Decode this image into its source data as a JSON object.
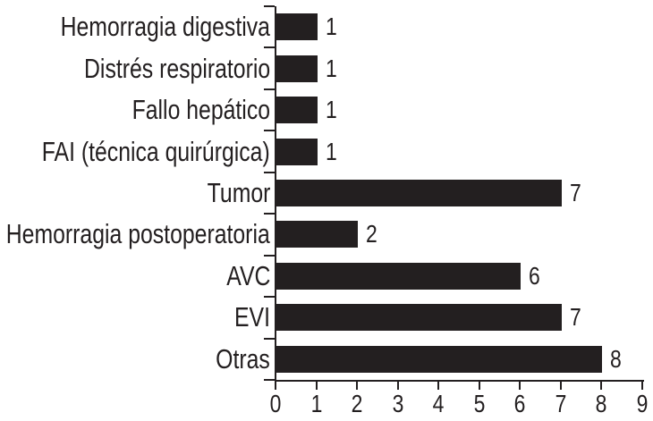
{
  "figure": {
    "background_color": "#ffffff",
    "bar_color": "#231f20",
    "axis_color": "#231f20",
    "text_color": "#231f20"
  },
  "chart_data": {
    "type": "bar",
    "orientation": "horizontal",
    "title": "",
    "xlabel": "",
    "ylabel": "",
    "categories": [
      "Hemorragia digestiva",
      "Distrés respiratorio",
      "Fallo hepático",
      "FAI (técnica quirúrgica)",
      "Tumor",
      "Hemorragia postoperatoria",
      "AVC",
      "EVI",
      "Otras"
    ],
    "values": [
      1,
      1,
      1,
      1,
      7,
      2,
      6,
      7,
      8
    ],
    "data_labels": [
      "1",
      "1",
      "1",
      "1",
      "7",
      "2",
      "6",
      "7",
      "8"
    ],
    "xlim": [
      0,
      9
    ],
    "x_ticks": [
      "0",
      "1",
      "2",
      "3",
      "4",
      "5",
      "6",
      "7",
      "8",
      "9"
    ],
    "grid": false,
    "legend": false,
    "bar_fill": "solid"
  }
}
